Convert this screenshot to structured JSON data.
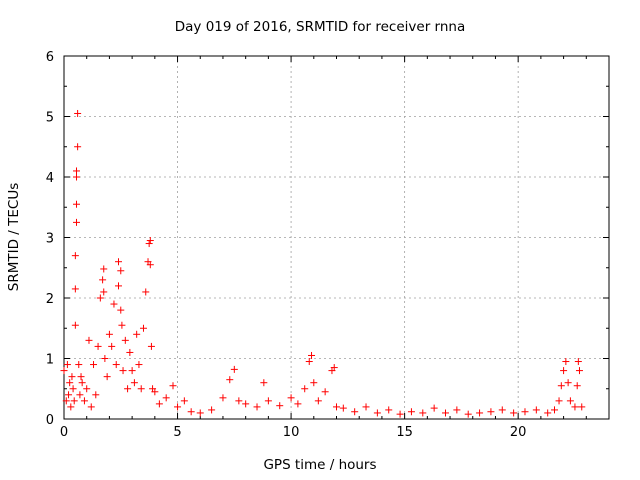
{
  "chart_data": {
    "type": "scatter",
    "title": "Day 019 of 2016, SRMTID for receiver rnna",
    "xlabel": "GPS time / hours",
    "ylabel": "SRMTID / TECUs",
    "xlim": [
      0,
      24
    ],
    "ylim": [
      0,
      6
    ],
    "xticks": [
      0,
      5,
      10,
      15,
      20
    ],
    "yticks": [
      0,
      1,
      2,
      3,
      4,
      5,
      6
    ],
    "grid": true,
    "marker": "+",
    "color": "#ff0000",
    "series": [
      {
        "name": "SRMTID",
        "x": [
          0.0,
          0.1,
          0.15,
          0.2,
          0.25,
          0.3,
          0.35,
          0.4,
          0.45,
          0.5,
          0.5,
          0.5,
          0.55,
          0.55,
          0.55,
          0.55,
          0.6,
          0.6,
          0.65,
          0.7,
          0.75,
          0.8,
          0.9,
          1.0,
          1.1,
          1.2,
          1.3,
          1.4,
          1.5,
          1.6,
          1.7,
          1.75,
          1.75,
          1.8,
          1.9,
          2.0,
          2.1,
          2.2,
          2.3,
          2.4,
          2.4,
          2.5,
          2.5,
          2.55,
          2.6,
          2.7,
          2.8,
          2.9,
          3.0,
          3.1,
          3.2,
          3.3,
          3.4,
          3.5,
          3.6,
          3.7,
          3.75,
          3.8,
          3.8,
          3.85,
          3.9,
          4.0,
          4.2,
          4.5,
          4.8,
          5.0,
          5.3,
          5.6,
          6.0,
          6.5,
          7.0,
          7.3,
          7.5,
          7.7,
          8.0,
          8.5,
          8.8,
          9.0,
          9.5,
          10.0,
          10.3,
          10.6,
          10.8,
          10.9,
          11.0,
          11.2,
          11.5,
          11.8,
          11.9,
          12.0,
          12.3,
          12.8,
          13.3,
          13.8,
          14.3,
          14.8,
          15.3,
          15.8,
          16.3,
          16.8,
          17.3,
          17.8,
          18.3,
          18.8,
          19.3,
          19.8,
          20.3,
          20.8,
          21.3,
          21.6,
          21.8,
          21.9,
          22.0,
          22.1,
          22.2,
          22.3,
          22.5,
          22.6,
          22.65,
          22.7,
          22.8
        ],
        "y": [
          0.8,
          0.3,
          0.9,
          0.4,
          0.6,
          0.2,
          0.7,
          0.5,
          0.3,
          1.55,
          2.15,
          2.7,
          3.25,
          3.55,
          4.0,
          4.1,
          4.5,
          5.05,
          0.9,
          0.4,
          0.7,
          0.6,
          0.3,
          0.5,
          1.3,
          0.2,
          0.9,
          0.4,
          1.2,
          2.0,
          2.3,
          2.48,
          2.1,
          1.0,
          0.7,
          1.4,
          1.2,
          1.9,
          0.9,
          2.2,
          2.6,
          2.45,
          1.8,
          1.55,
          0.8,
          1.3,
          0.5,
          1.1,
          0.8,
          0.6,
          1.4,
          0.9,
          0.5,
          1.5,
          2.1,
          2.6,
          2.9,
          2.95,
          2.55,
          1.2,
          0.5,
          0.45,
          0.25,
          0.35,
          0.55,
          0.2,
          0.3,
          0.12,
          0.1,
          0.15,
          0.35,
          0.65,
          0.82,
          0.3,
          0.25,
          0.2,
          0.6,
          0.3,
          0.22,
          0.35,
          0.25,
          0.5,
          0.95,
          1.05,
          0.6,
          0.3,
          0.45,
          0.8,
          0.85,
          0.2,
          0.18,
          0.12,
          0.2,
          0.1,
          0.15,
          0.08,
          0.12,
          0.1,
          0.18,
          0.1,
          0.15,
          0.08,
          0.1,
          0.12,
          0.15,
          0.1,
          0.12,
          0.15,
          0.1,
          0.15,
          0.3,
          0.55,
          0.8,
          0.95,
          0.6,
          0.3,
          0.2,
          0.55,
          0.95,
          0.8,
          0.2
        ]
      }
    ]
  }
}
